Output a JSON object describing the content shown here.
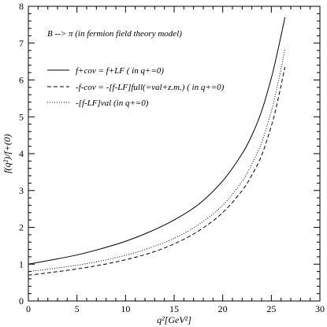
{
  "chart_data": {
    "type": "line",
    "title": "",
    "annotation": "B --> π (in fermion field theory model)",
    "xlabel": "q²[GeV²]",
    "ylabel": "f(q²)/f+(0)",
    "xlim": [
      0,
      30
    ],
    "ylim": [
      0,
      8
    ],
    "xticks": [
      "0",
      "5",
      "10",
      "15",
      "20",
      "25",
      "30"
    ],
    "yticks": [
      "0",
      "1",
      "2",
      "3",
      "4",
      "5",
      "6",
      "7",
      "8"
    ],
    "grid": false,
    "legend_position": "upper-left",
    "series": [
      {
        "name": "f+cov = f+LF ( in q+=0)",
        "style": "solid",
        "x": [
          0,
          2.5,
          5,
          7.5,
          10,
          12.5,
          15,
          17.5,
          20,
          22,
          23,
          24,
          25,
          25.5,
          26,
          26.4
        ],
        "y": [
          1.0,
          1.12,
          1.25,
          1.42,
          1.62,
          1.88,
          2.2,
          2.62,
          3.26,
          4.0,
          4.5,
          5.15,
          6.05,
          6.6,
          7.2,
          7.7
        ]
      },
      {
        "name": "-f-cov = -[f-LF]full(=val+z.m.) ( in q+=0)",
        "style": "dashed",
        "x": [
          0,
          2.5,
          5,
          7.5,
          10,
          12.5,
          15,
          17.5,
          20,
          22,
          23,
          24,
          25,
          25.5,
          26,
          26.4
        ],
        "y": [
          0.7,
          0.78,
          0.87,
          0.98,
          1.12,
          1.3,
          1.55,
          1.9,
          2.4,
          3.0,
          3.42,
          3.95,
          4.75,
          5.25,
          5.85,
          6.35
        ]
      },
      {
        "name": "-[f-LF]val (in q+=0)",
        "style": "dotted",
        "x": [
          0,
          2.5,
          5,
          7.5,
          10,
          12.5,
          15,
          17.5,
          20,
          22,
          23,
          24,
          25,
          25.5,
          26,
          26.4
        ],
        "y": [
          0.8,
          0.88,
          0.97,
          1.09,
          1.24,
          1.44,
          1.7,
          2.07,
          2.6,
          3.25,
          3.72,
          4.3,
          5.15,
          5.7,
          6.3,
          6.85
        ]
      }
    ]
  }
}
